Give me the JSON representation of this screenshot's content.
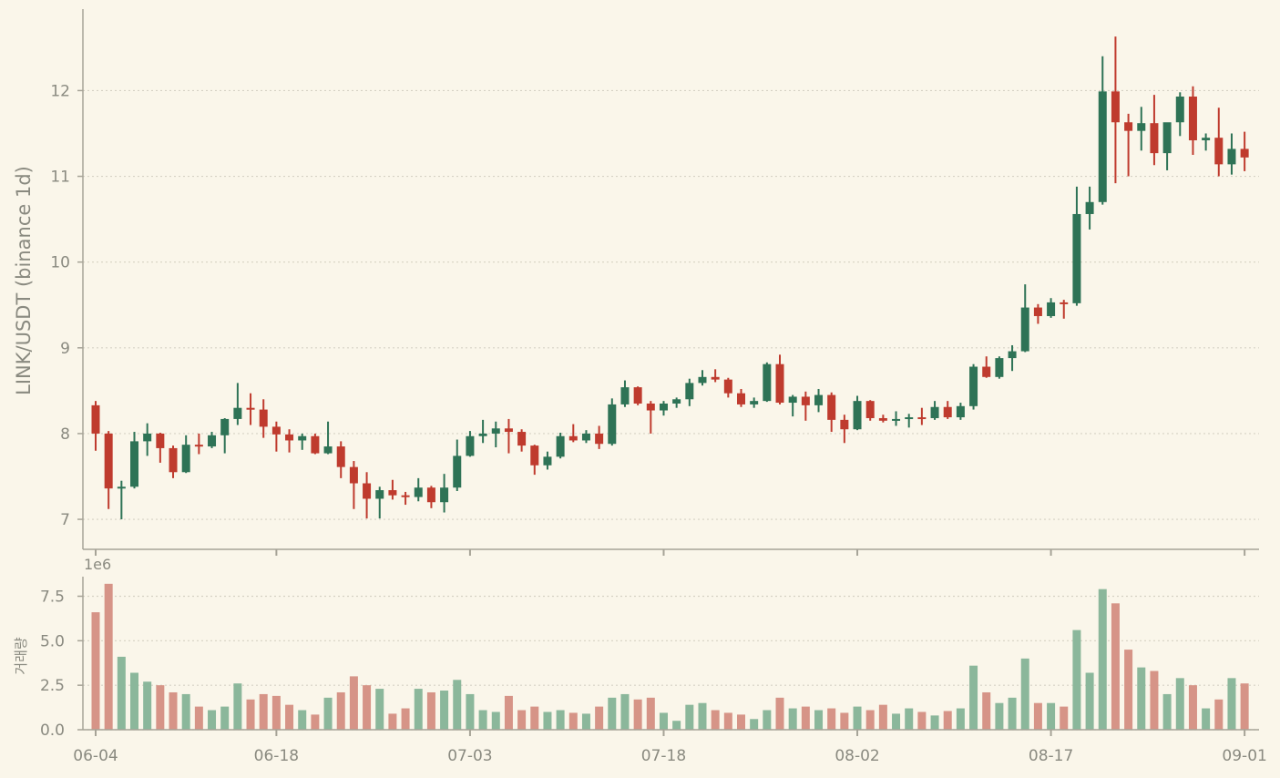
{
  "chart_data": [
    {
      "type": "candlestick",
      "ylabel": "LINK/USDT (binance 1d)",
      "ylim": [
        6.65,
        12.95
      ],
      "yticks": [
        7,
        8,
        9,
        10,
        11,
        12
      ],
      "grid": true,
      "x_dates": [
        "06-04",
        "06-05",
        "06-06",
        "06-07",
        "06-08",
        "06-09",
        "06-10",
        "06-11",
        "06-12",
        "06-13",
        "06-14",
        "06-15",
        "06-16",
        "06-17",
        "06-18",
        "06-19",
        "06-20",
        "06-21",
        "06-22",
        "06-23",
        "06-24",
        "06-25",
        "06-26",
        "06-27",
        "06-28",
        "06-29",
        "06-30",
        "07-01",
        "07-02",
        "07-03",
        "07-04",
        "07-05",
        "07-06",
        "07-07",
        "07-08",
        "07-09",
        "07-10",
        "07-11",
        "07-12",
        "07-13",
        "07-14",
        "07-15",
        "07-16",
        "07-17",
        "07-18",
        "07-19",
        "07-20",
        "07-21",
        "07-22",
        "07-23",
        "07-24",
        "07-25",
        "07-26",
        "07-27",
        "07-28",
        "07-29",
        "07-30",
        "07-31",
        "08-01",
        "08-02",
        "08-03",
        "08-04",
        "08-05",
        "08-06",
        "08-07",
        "08-08",
        "08-09",
        "08-10",
        "08-11",
        "08-12",
        "08-13",
        "08-14",
        "08-15",
        "08-16",
        "08-17",
        "08-18",
        "08-19",
        "08-20",
        "08-21",
        "08-22",
        "08-23",
        "08-24",
        "08-25",
        "08-26",
        "08-27",
        "08-28",
        "08-29",
        "08-30",
        "08-31",
        "09-01"
      ],
      "xtick_labels": [
        "06-04",
        "06-18",
        "07-03",
        "07-18",
        "08-02",
        "08-17",
        "09-01"
      ],
      "colors": {
        "up": "#2e7356",
        "down": "#bf3b2e"
      },
      "ohlc": [
        [
          8.33,
          8.38,
          7.8,
          8.0
        ],
        [
          8.0,
          8.03,
          7.12,
          7.36
        ],
        [
          7.36,
          7.45,
          7.0,
          7.38
        ],
        [
          7.38,
          8.02,
          7.36,
          7.91
        ],
        [
          7.91,
          8.12,
          7.74,
          8.0
        ],
        [
          8.0,
          8.01,
          7.66,
          7.83
        ],
        [
          7.83,
          7.86,
          7.48,
          7.55
        ],
        [
          7.55,
          7.98,
          7.54,
          7.87
        ],
        [
          7.87,
          8.0,
          7.76,
          7.85
        ],
        [
          7.85,
          8.02,
          7.83,
          7.98
        ],
        [
          7.98,
          8.18,
          7.77,
          8.17
        ],
        [
          8.17,
          8.59,
          8.1,
          8.3
        ],
        [
          8.3,
          8.47,
          8.1,
          8.28
        ],
        [
          8.28,
          8.4,
          7.95,
          8.08
        ],
        [
          8.08,
          8.14,
          7.79,
          7.99
        ],
        [
          7.99,
          8.05,
          7.78,
          7.92
        ],
        [
          7.92,
          8.0,
          7.81,
          7.97
        ],
        [
          7.97,
          8.0,
          7.76,
          7.77
        ],
        [
          7.77,
          8.14,
          7.76,
          7.85
        ],
        [
          7.85,
          7.91,
          7.48,
          7.61
        ],
        [
          7.61,
          7.68,
          7.12,
          7.42
        ],
        [
          7.42,
          7.55,
          7.01,
          7.24
        ],
        [
          7.24,
          7.38,
          7.01,
          7.34
        ],
        [
          7.34,
          7.46,
          7.23,
          7.28
        ],
        [
          7.28,
          7.32,
          7.17,
          7.26
        ],
        [
          7.26,
          7.48,
          7.21,
          7.37
        ],
        [
          7.37,
          7.39,
          7.13,
          7.2
        ],
        [
          7.2,
          7.53,
          7.08,
          7.37
        ],
        [
          7.37,
          7.93,
          7.33,
          7.74
        ],
        [
          7.74,
          8.03,
          7.73,
          7.97
        ],
        [
          7.97,
          8.16,
          7.89,
          8.0
        ],
        [
          8.0,
          8.14,
          7.84,
          8.06
        ],
        [
          8.06,
          8.17,
          7.77,
          8.02
        ],
        [
          8.02,
          8.05,
          7.79,
          7.86
        ],
        [
          7.86,
          7.87,
          7.52,
          7.63
        ],
        [
          7.63,
          7.79,
          7.58,
          7.73
        ],
        [
          7.73,
          8.01,
          7.71,
          7.97
        ],
        [
          7.97,
          8.11,
          7.9,
          7.92
        ],
        [
          7.92,
          8.04,
          7.89,
          8.0
        ],
        [
          8.0,
          8.09,
          7.82,
          7.88
        ],
        [
          7.88,
          8.41,
          7.86,
          8.34
        ],
        [
          8.34,
          8.62,
          8.31,
          8.54
        ],
        [
          8.54,
          8.55,
          8.33,
          8.35
        ],
        [
          8.35,
          8.38,
          8.0,
          8.27
        ],
        [
          8.27,
          8.38,
          8.21,
          8.35
        ],
        [
          8.35,
          8.42,
          8.3,
          8.4
        ],
        [
          8.4,
          8.64,
          8.32,
          8.59
        ],
        [
          8.59,
          8.74,
          8.56,
          8.66
        ],
        [
          8.66,
          8.75,
          8.6,
          8.63
        ],
        [
          8.63,
          8.65,
          8.42,
          8.47
        ],
        [
          8.47,
          8.52,
          8.31,
          8.34
        ],
        [
          8.34,
          8.42,
          8.3,
          8.38
        ],
        [
          8.38,
          8.83,
          8.37,
          8.81
        ],
        [
          8.81,
          8.92,
          8.34,
          8.36
        ],
        [
          8.36,
          8.45,
          8.2,
          8.43
        ],
        [
          8.43,
          8.49,
          8.15,
          8.33
        ],
        [
          8.33,
          8.52,
          8.25,
          8.45
        ],
        [
          8.45,
          8.48,
          8.02,
          8.16
        ],
        [
          8.16,
          8.22,
          7.89,
          8.05
        ],
        [
          8.05,
          8.44,
          8.04,
          8.38
        ],
        [
          8.38,
          8.39,
          8.15,
          8.18
        ],
        [
          8.18,
          8.22,
          8.13,
          8.15
        ],
        [
          8.15,
          8.26,
          8.09,
          8.17
        ],
        [
          8.17,
          8.23,
          8.07,
          8.19
        ],
        [
          8.19,
          8.3,
          8.1,
          8.18
        ],
        [
          8.18,
          8.38,
          8.16,
          8.31
        ],
        [
          8.31,
          8.38,
          8.17,
          8.19
        ],
        [
          8.19,
          8.36,
          8.16,
          8.32
        ],
        [
          8.32,
          8.81,
          8.28,
          8.78
        ],
        [
          8.78,
          8.9,
          8.65,
          8.66
        ],
        [
          8.66,
          8.9,
          8.64,
          8.88
        ],
        [
          8.88,
          9.03,
          8.73,
          8.96
        ],
        [
          8.96,
          9.74,
          8.95,
          9.47
        ],
        [
          9.47,
          9.51,
          9.28,
          9.37
        ],
        [
          9.37,
          9.58,
          9.35,
          9.53
        ],
        [
          9.53,
          9.56,
          9.34,
          9.52
        ],
        [
          9.52,
          10.88,
          9.49,
          10.56
        ],
        [
          10.56,
          10.88,
          10.38,
          10.7
        ],
        [
          10.7,
          12.4,
          10.67,
          11.99
        ],
        [
          11.99,
          12.63,
          10.92,
          11.63
        ],
        [
          11.63,
          11.73,
          11.0,
          11.53
        ],
        [
          11.53,
          11.81,
          11.3,
          11.62
        ],
        [
          11.62,
          11.95,
          11.13,
          11.27
        ],
        [
          11.27,
          11.62,
          11.07,
          11.63
        ],
        [
          11.63,
          11.98,
          11.47,
          11.93
        ],
        [
          11.93,
          12.05,
          11.25,
          11.42
        ],
        [
          11.42,
          11.5,
          11.3,
          11.45
        ],
        [
          11.45,
          11.8,
          11.0,
          11.14
        ],
        [
          11.14,
          11.5,
          11.02,
          11.32
        ],
        [
          11.32,
          11.52,
          11.06,
          11.22
        ]
      ]
    },
    {
      "type": "bar",
      "ylabel": "거래량",
      "scale_label": "1e6",
      "ylim": [
        0,
        8.6
      ],
      "yticks": [
        0.0,
        2.5,
        5.0,
        7.5
      ],
      "ytick_labels": [
        "0.0",
        "2.5",
        "5.0",
        "7.5"
      ],
      "grid": true,
      "colors": {
        "up": "#8bb79b",
        "down": "#d69487"
      },
      "values": [
        6.6,
        8.2,
        4.1,
        3.2,
        2.7,
        2.5,
        2.1,
        2.0,
        1.3,
        1.1,
        1.3,
        2.6,
        1.7,
        2.0,
        1.9,
        1.4,
        1.1,
        0.85,
        1.8,
        2.1,
        3.0,
        2.5,
        2.3,
        0.9,
        1.2,
        2.3,
        2.1,
        2.2,
        2.8,
        2.0,
        1.1,
        1.0,
        1.9,
        1.1,
        1.3,
        1.0,
        1.1,
        0.95,
        0.9,
        1.3,
        1.8,
        2.0,
        1.7,
        1.8,
        0.95,
        0.5,
        1.4,
        1.5,
        1.1,
        0.95,
        0.85,
        0.6,
        1.1,
        1.8,
        1.2,
        1.3,
        1.1,
        1.2,
        0.95,
        1.3,
        1.1,
        1.4,
        0.9,
        1.2,
        1.0,
        0.8,
        1.05,
        1.2,
        3.6,
        2.1,
        1.5,
        1.8,
        4.0,
        1.5,
        1.5,
        1.3,
        5.6,
        3.2,
        7.9,
        7.1,
        4.5,
        3.5,
        3.3,
        2.0,
        2.9,
        2.5,
        1.2,
        1.7,
        2.9,
        2.6
      ]
    }
  ]
}
